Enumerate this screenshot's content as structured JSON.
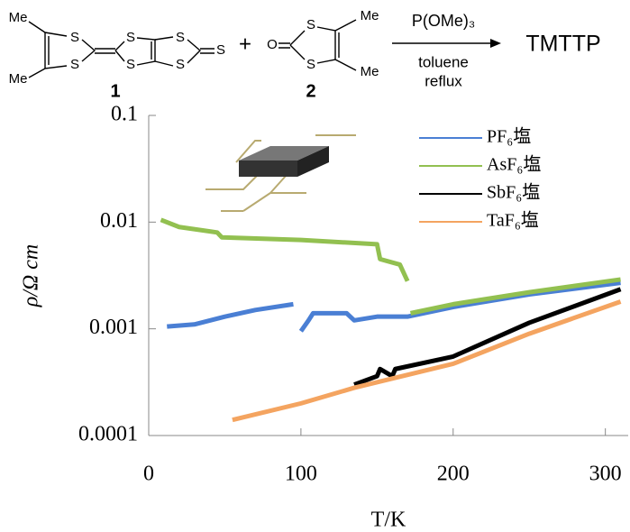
{
  "scheme": {
    "atoms": [
      "Me",
      "Me",
      "S",
      "S",
      "S",
      "S",
      "S",
      "S",
      "S",
      "O",
      "S",
      "S",
      "Me",
      "Me"
    ],
    "compound_labels": [
      "1",
      "2"
    ],
    "plus": "+",
    "reagent": "P(OMe)₃",
    "conditions": [
      "toluene",
      "reflux"
    ],
    "product": "TMTTP"
  },
  "chart_data": {
    "type": "line",
    "x_label": "T/K",
    "y_label": "ρ/Ω cm",
    "xlim": [
      0,
      315
    ],
    "xticks": [
      0,
      100,
      200,
      300
    ],
    "ylim": [
      0.0001,
      0.1
    ],
    "yticks": [
      0.1,
      0.01,
      0.001,
      0.0001
    ],
    "log_y": true,
    "legend": "top-right",
    "series": [
      {
        "name": "PF₆塩",
        "color": "#4a7fd4",
        "x": [
          12,
          30,
          50,
          70,
          95,
          97,
          100,
          105,
          108,
          115,
          130,
          135,
          150,
          170,
          200,
          250,
          310
        ],
        "values": [
          0.00105,
          0.0011,
          0.0013,
          0.0015,
          0.0017,
          null,
          0.00095,
          0.0012,
          0.0014,
          0.0014,
          0.0014,
          0.0012,
          0.0013,
          0.0013,
          0.0016,
          0.0021,
          0.0027
        ]
      },
      {
        "name": "AsF₆塩",
        "color": "#92c050",
        "x": [
          8,
          20,
          45,
          48,
          100,
          150,
          152,
          165,
          170,
          171,
          172,
          200,
          250,
          310
        ],
        "values": [
          0.0105,
          0.009,
          0.008,
          0.0072,
          0.0068,
          0.0062,
          0.0045,
          0.004,
          0.0028,
          null,
          0.0014,
          0.0017,
          0.0022,
          0.0029
        ]
      },
      {
        "name": "SbF₆塩",
        "color": "#000000",
        "x": [
          135,
          150,
          152,
          160,
          162,
          200,
          250,
          310
        ],
        "values": [
          0.0003,
          0.00036,
          0.00042,
          0.00036,
          0.00042,
          0.00055,
          0.00114,
          0.00235
        ]
      },
      {
        "name": "TaF₆塩",
        "color": "#f4a460",
        "x": [
          55,
          100,
          135,
          200,
          250,
          310
        ],
        "values": [
          0.00014,
          0.0002,
          0.00028,
          0.00047,
          0.0009,
          0.0018
        ]
      }
    ]
  }
}
